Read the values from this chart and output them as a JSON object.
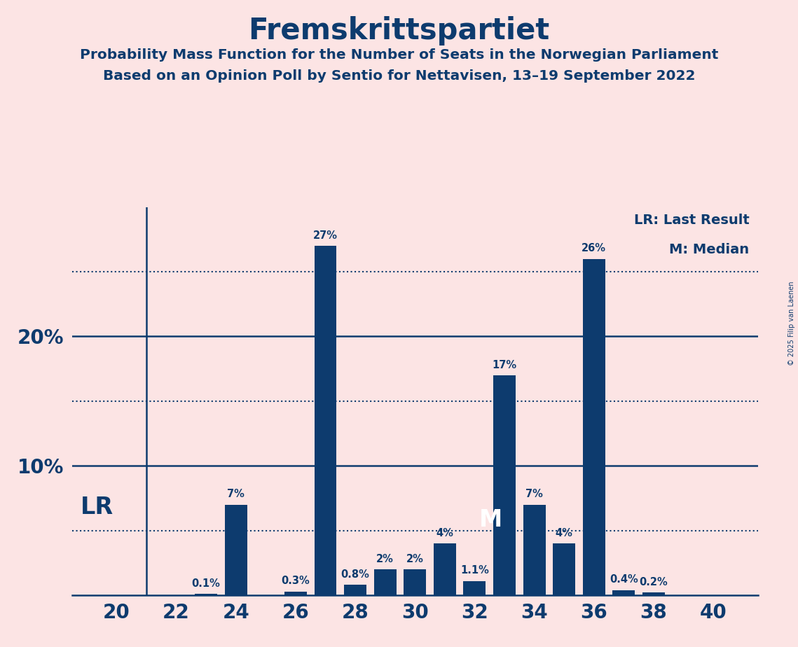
{
  "title": "Fremskrittspartiet",
  "subtitle1": "Probability Mass Function for the Number of Seats in the Norwegian Parliament",
  "subtitle2": "Based on an Opinion Poll by Sentio for Nettavisen, 13–19 September 2022",
  "seats": [
    20,
    21,
    22,
    23,
    24,
    25,
    26,
    27,
    28,
    29,
    30,
    31,
    32,
    33,
    34,
    35,
    36,
    37,
    38,
    39,
    40
  ],
  "probabilities": [
    0.0,
    0.0,
    0.0,
    0.1,
    7.0,
    0.0,
    0.3,
    27.0,
    0.8,
    2.0,
    2.0,
    4.0,
    1.1,
    17.0,
    7.0,
    4.0,
    26.0,
    0.4,
    0.2,
    0.0,
    0.0
  ],
  "bar_color": "#0d3b6e",
  "background_color": "#fce4e4",
  "text_color": "#0d3b6e",
  "lr_seat": 21,
  "median_seat": 33,
  "xticks": [
    20,
    22,
    24,
    26,
    28,
    30,
    32,
    34,
    36,
    38,
    40
  ],
  "dotted_lines": [
    5,
    15,
    25
  ],
  "solid_lines": [
    10,
    20
  ],
  "ylim": [
    0,
    30
  ],
  "xlim": [
    18.5,
    41.5
  ],
  "copyright": "© 2025 Filip van Laenen",
  "bar_width": 0.75
}
